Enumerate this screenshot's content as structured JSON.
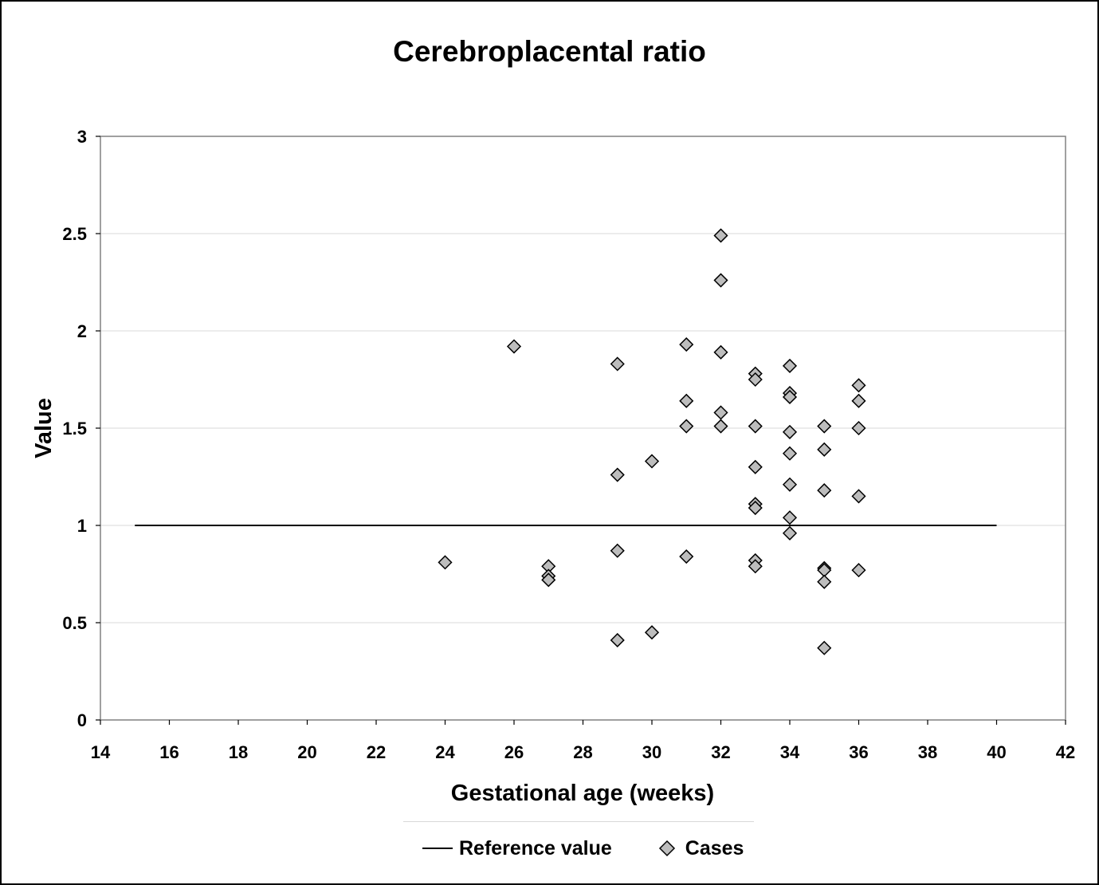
{
  "chart_data": {
    "type": "scatter",
    "title": "Cerebroplacental ratio",
    "xlabel": "Gestational age (weeks)",
    "ylabel": "Value",
    "xlim": [
      14,
      42
    ],
    "ylim": [
      0,
      3
    ],
    "x_ticks": [
      "14",
      "16",
      "18",
      "20",
      "22",
      "24",
      "26",
      "28",
      "30",
      "32",
      "34",
      "36",
      "38",
      "40",
      "42"
    ],
    "y_ticks": [
      "0",
      "0.5",
      "1",
      "1.5",
      "2",
      "2.5",
      "3"
    ],
    "grid": "horizontal",
    "legend_position": "bottom",
    "series": [
      {
        "name": "Reference value",
        "kind": "line",
        "color": "#000000",
        "x": [
          15,
          40
        ],
        "y": [
          1,
          1
        ]
      },
      {
        "name": "Cases",
        "kind": "scatter",
        "marker": "diamond",
        "color": "#bdbdbd",
        "points": [
          [
            24,
            0.81
          ],
          [
            26,
            1.92
          ],
          [
            27,
            0.79
          ],
          [
            27,
            0.74
          ],
          [
            27,
            0.72
          ],
          [
            29,
            1.83
          ],
          [
            29,
            1.26
          ],
          [
            29,
            0.87
          ],
          [
            29,
            0.41
          ],
          [
            30,
            1.33
          ],
          [
            30,
            0.45
          ],
          [
            31,
            1.93
          ],
          [
            31,
            1.64
          ],
          [
            31,
            1.51
          ],
          [
            31,
            0.84
          ],
          [
            32,
            2.49
          ],
          [
            32,
            2.26
          ],
          [
            32,
            1.89
          ],
          [
            32,
            1.58
          ],
          [
            32,
            1.51
          ],
          [
            33,
            1.78
          ],
          [
            33,
            1.75
          ],
          [
            33,
            1.51
          ],
          [
            33,
            1.3
          ],
          [
            33,
            1.11
          ],
          [
            33,
            1.09
          ],
          [
            33,
            0.82
          ],
          [
            33,
            0.79
          ],
          [
            34,
            1.82
          ],
          [
            34,
            1.68
          ],
          [
            34,
            1.66
          ],
          [
            34,
            1.48
          ],
          [
            34,
            1.37
          ],
          [
            34,
            1.21
          ],
          [
            34,
            1.04
          ],
          [
            34,
            0.96
          ],
          [
            35,
            1.51
          ],
          [
            35,
            1.39
          ],
          [
            35,
            1.18
          ],
          [
            35,
            0.78
          ],
          [
            35,
            0.77
          ],
          [
            35,
            0.71
          ],
          [
            35,
            0.37
          ],
          [
            36,
            1.72
          ],
          [
            36,
            1.64
          ],
          [
            36,
            1.5
          ],
          [
            36,
            1.15
          ],
          [
            36,
            0.77
          ]
        ]
      }
    ]
  }
}
